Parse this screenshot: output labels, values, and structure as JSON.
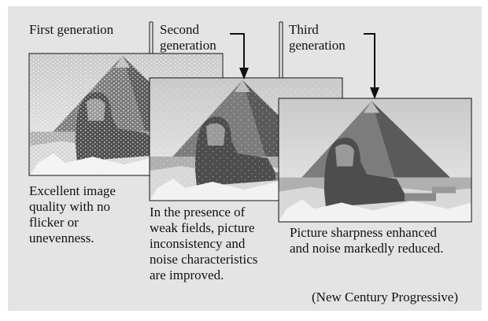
{
  "generations": [
    {
      "label": [
        "First generation"
      ],
      "caption": [
        "Excellent image",
        "quality with no",
        "flicker or",
        "unevenness."
      ]
    },
    {
      "label": [
        "Second",
        "generation"
      ],
      "caption": [
        "In the presence of",
        "weak fields, picture",
        "inconsistency and",
        "noise characteristics",
        "are improved."
      ]
    },
    {
      "label": [
        "Third",
        "generation"
      ],
      "caption": [
        "Picture sharpness enhanced",
        "and noise markedly reduced."
      ]
    }
  ],
  "footer": "(New Century Progressive)"
}
